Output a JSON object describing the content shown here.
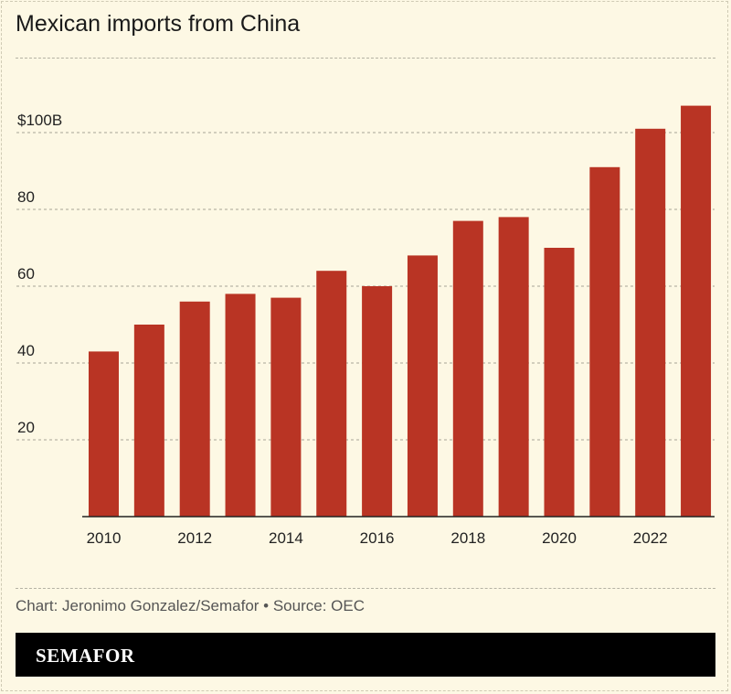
{
  "chart_data": {
    "type": "bar",
    "title": "Mexican imports from China",
    "categories": [
      "2010",
      "2011",
      "2012",
      "2013",
      "2014",
      "2015",
      "2016",
      "2017",
      "2018",
      "2019",
      "2020",
      "2021",
      "2022",
      "2023"
    ],
    "values": [
      43,
      50,
      56,
      58,
      57,
      64,
      60,
      68,
      77,
      78,
      70,
      91,
      101,
      107
    ],
    "ylim": [
      0,
      110
    ],
    "yticks": [
      20,
      40,
      60,
      80,
      100
    ],
    "ytick_labels": [
      "20",
      "40",
      "60",
      "80",
      "$100B"
    ],
    "xtick_labels": [
      "2010",
      "2012",
      "2014",
      "2016",
      "2018",
      "2020",
      "2022"
    ],
    "xlabel": "",
    "ylabel": "",
    "grid": true,
    "bar_color": "#b93424"
  },
  "footer": {
    "source": "Chart: Jeronimo Gonzalez/Semafor • Source: OEC",
    "brand": "SEMAFOR"
  }
}
